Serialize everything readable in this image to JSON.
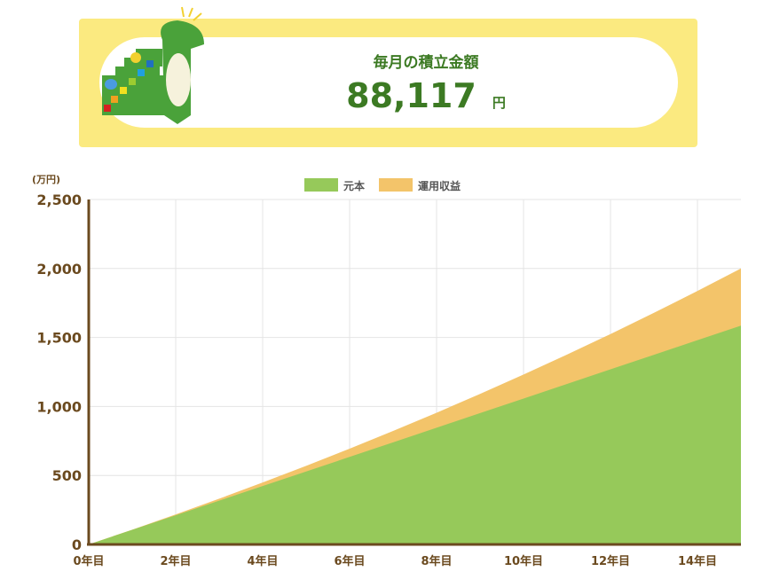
{
  "banner": {
    "title": "毎月の積立金額",
    "amount": "88,117",
    "unit": "円"
  },
  "chart_data": {
    "type": "area",
    "stacked": true,
    "unit_label": "(万円)",
    "x": [
      0,
      1,
      2,
      3,
      4,
      5,
      6,
      7,
      8,
      9,
      10,
      11,
      12,
      13,
      14,
      15
    ],
    "xticks": [
      "0年目",
      "2年目",
      "4年目",
      "6年目",
      "8年目",
      "10年目",
      "12年目",
      "14年目"
    ],
    "yticks": [
      "0",
      "500",
      "1,000",
      "1,500",
      "2,000",
      "2,500"
    ],
    "ylim": [
      0,
      2500
    ],
    "grid": true,
    "legend": "top",
    "series": [
      {
        "name": "元本",
        "color": "#96c95a",
        "values": [
          0,
          105.7,
          211.5,
          317.2,
          423.0,
          528.7,
          634.4,
          740.2,
          845.9,
          951.7,
          1057.4,
          1163.1,
          1268.9,
          1374.6,
          1480.4,
          1586.1
        ]
      },
      {
        "name": "運用収益",
        "color": "#f3c46a",
        "values": [
          0,
          1.5,
          6.2,
          14.3,
          25.8,
          40.9,
          59.8,
          82.3,
          108.8,
          139.3,
          174.0,
          212.9,
          256.2,
          304.1,
          356.5,
          413.9
        ]
      }
    ],
    "axis_color": "#6b4a1f"
  }
}
